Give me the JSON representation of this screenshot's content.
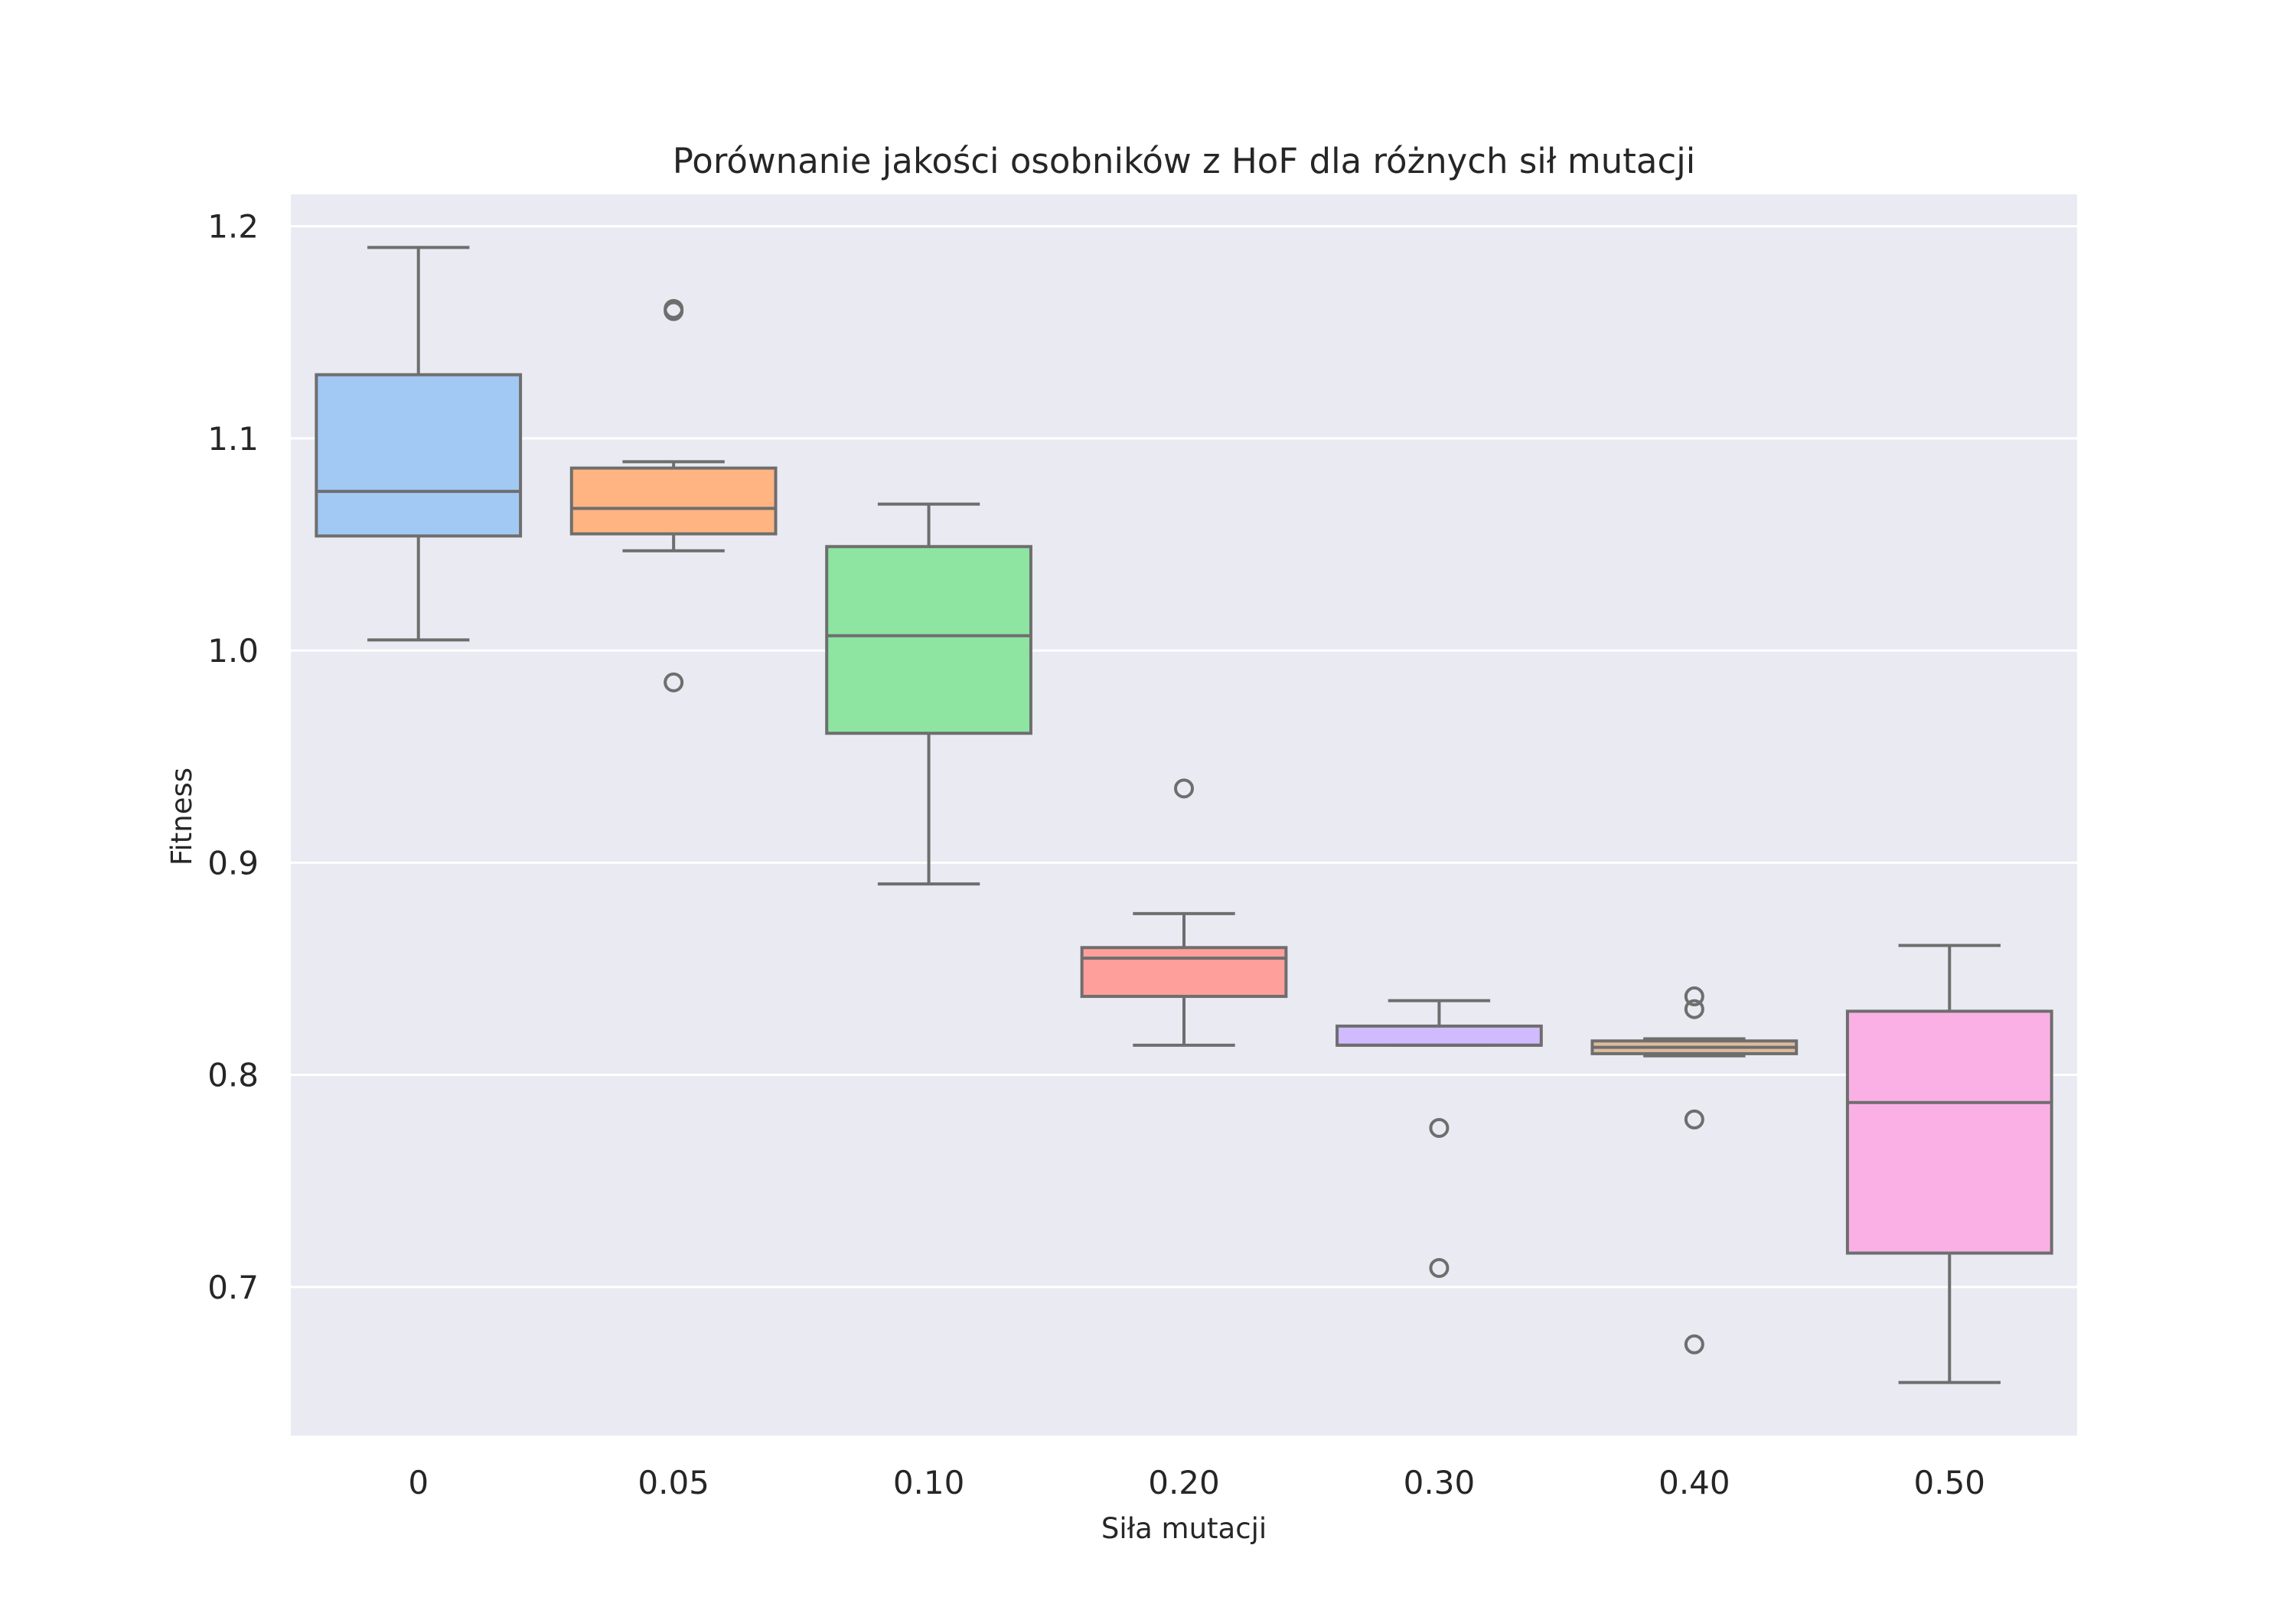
{
  "chart_data": {
    "type": "box",
    "title": "Porównanie jakości osobników z HoF dla różnych sił mutacji",
    "xlabel": "Siła mutacji",
    "ylabel": "Fitness",
    "ylim": [
      0.63,
      1.215
    ],
    "yticks": [
      0.7,
      0.8,
      0.9,
      1.0,
      1.1,
      1.2
    ],
    "ytick_labels": [
      "0.7",
      "0.8",
      "0.9",
      "1.0",
      "1.1",
      "1.2"
    ],
    "grid": true,
    "background": "#eaeaf2",
    "categories": [
      "0",
      "0.05",
      "0.10",
      "0.20",
      "0.30",
      "0.40",
      "0.50"
    ],
    "boxes": [
      {
        "category": "0",
        "color": "#a1c9f4",
        "whisker_low": 1.005,
        "q1": 1.054,
        "median": 1.075,
        "q3": 1.13,
        "whisker_high": 1.19,
        "fliers": []
      },
      {
        "category": "0.05",
        "color": "#ffb482",
        "whisker_low": 1.047,
        "q1": 1.055,
        "median": 1.067,
        "q3": 1.086,
        "whisker_high": 1.089,
        "fliers": [
          1.161,
          1.16,
          0.985
        ]
      },
      {
        "category": "0.10",
        "color": "#8de5a1",
        "whisker_low": 0.89,
        "q1": 0.961,
        "median": 1.007,
        "q3": 1.049,
        "whisker_high": 1.069,
        "fliers": []
      },
      {
        "category": "0.20",
        "color": "#ff9f9b",
        "whisker_low": 0.814,
        "q1": 0.837,
        "median": 0.855,
        "q3": 0.86,
        "whisker_high": 0.876,
        "fliers": [
          0.935
        ]
      },
      {
        "category": "0.30",
        "color": "#d0bbff",
        "whisker_low": 0.814,
        "q1": 0.814,
        "median": 0.814,
        "q3": 0.823,
        "whisker_high": 0.835,
        "fliers": [
          0.775,
          0.709
        ]
      },
      {
        "category": "0.40",
        "color": "#debb9b",
        "whisker_low": 0.809,
        "q1": 0.81,
        "median": 0.813,
        "q3": 0.816,
        "whisker_high": 0.817,
        "fliers": [
          0.837,
          0.831,
          0.779,
          0.673
        ]
      },
      {
        "category": "0.50",
        "color": "#fab0e4",
        "whisker_low": 0.655,
        "q1": 0.716,
        "median": 0.787,
        "q3": 0.83,
        "whisker_high": 0.861,
        "fliers": []
      }
    ]
  }
}
